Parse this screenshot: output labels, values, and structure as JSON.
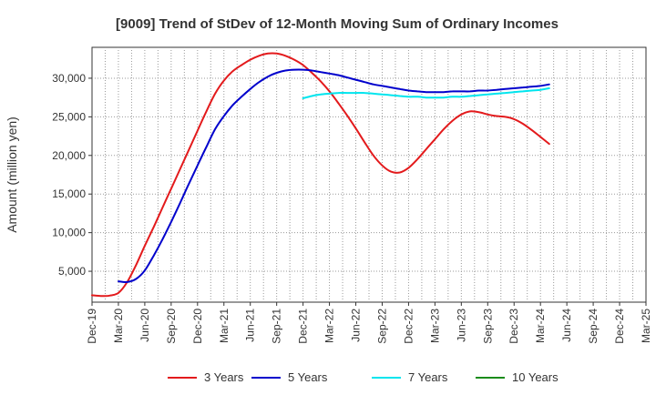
{
  "chart_data": {
    "type": "line",
    "title": "[9009]  Trend of StDev of 12-Month Moving Sum of Ordinary Incomes",
    "xlabel": "",
    "ylabel": "Amount (million yen)",
    "ylim": [
      1000,
      34000
    ],
    "yticks": [
      5000,
      10000,
      15000,
      20000,
      25000,
      30000
    ],
    "ytick_labels": [
      "5,000",
      "10,000",
      "15,000",
      "20,000",
      "25,000",
      "30,000"
    ],
    "x_tick_labels": [
      "Dec-19",
      "Mar-20",
      "Jun-20",
      "Sep-20",
      "Dec-20",
      "Mar-21",
      "Jun-21",
      "Sep-21",
      "Dec-21",
      "Mar-22",
      "Jun-22",
      "Sep-22",
      "Dec-22",
      "Mar-23",
      "Jun-23",
      "Sep-23",
      "Dec-23",
      "Mar-24",
      "Jun-24",
      "Sep-24",
      "Dec-24",
      "Mar-25"
    ],
    "grid": true,
    "legend_position": "bottom",
    "series": [
      {
        "name": "3 Years",
        "color": "#e31a1c",
        "values": [
          [
            0,
            1900
          ],
          [
            1,
            1800
          ],
          [
            2,
            1850
          ],
          [
            3,
            2200
          ],
          [
            4,
            3600
          ],
          [
            5,
            5800
          ],
          [
            6,
            8300
          ],
          [
            7,
            10700
          ],
          [
            8,
            13200
          ],
          [
            9,
            15700
          ],
          [
            10,
            18200
          ],
          [
            11,
            20700
          ],
          [
            12,
            23200
          ],
          [
            13,
            25700
          ],
          [
            14,
            28000
          ],
          [
            15,
            29700
          ],
          [
            16,
            30900
          ],
          [
            17,
            31700
          ],
          [
            18,
            32400
          ],
          [
            19,
            32900
          ],
          [
            20,
            33200
          ],
          [
            21,
            33200
          ],
          [
            22,
            32900
          ],
          [
            23,
            32400
          ],
          [
            24,
            31700
          ],
          [
            25,
            30700
          ],
          [
            26,
            29600
          ],
          [
            27,
            28300
          ],
          [
            28,
            26800
          ],
          [
            29,
            25200
          ],
          [
            30,
            23500
          ],
          [
            31,
            21700
          ],
          [
            32,
            20000
          ],
          [
            33,
            18700
          ],
          [
            34,
            17900
          ],
          [
            35,
            17800
          ],
          [
            36,
            18400
          ],
          [
            37,
            19500
          ],
          [
            38,
            20800
          ],
          [
            39,
            22100
          ],
          [
            40,
            23400
          ],
          [
            41,
            24500
          ],
          [
            42,
            25300
          ],
          [
            43,
            25700
          ],
          [
            44,
            25600
          ],
          [
            45,
            25300
          ],
          [
            46,
            25100
          ],
          [
            47,
            25000
          ],
          [
            48,
            24700
          ],
          [
            49,
            24100
          ],
          [
            50,
            23300
          ],
          [
            51,
            22400
          ],
          [
            52,
            21500
          ]
        ]
      },
      {
        "name": "5 Years",
        "color": "#0000cc",
        "values": [
          [
            3,
            3700
          ],
          [
            4,
            3600
          ],
          [
            5,
            4000
          ],
          [
            6,
            5100
          ],
          [
            7,
            7000
          ],
          [
            8,
            9100
          ],
          [
            9,
            11400
          ],
          [
            10,
            13800
          ],
          [
            11,
            16300
          ],
          [
            12,
            18700
          ],
          [
            13,
            21100
          ],
          [
            14,
            23400
          ],
          [
            15,
            25100
          ],
          [
            16,
            26500
          ],
          [
            17,
            27600
          ],
          [
            18,
            28600
          ],
          [
            19,
            29500
          ],
          [
            20,
            30200
          ],
          [
            21,
            30700
          ],
          [
            22,
            31000
          ],
          [
            23,
            31100
          ],
          [
            24,
            31100
          ],
          [
            25,
            31000
          ],
          [
            26,
            30800
          ],
          [
            27,
            30600
          ],
          [
            28,
            30400
          ],
          [
            29,
            30100
          ],
          [
            30,
            29800
          ],
          [
            31,
            29500
          ],
          [
            32,
            29200
          ],
          [
            33,
            29000
          ],
          [
            34,
            28800
          ],
          [
            35,
            28600
          ],
          [
            36,
            28400
          ],
          [
            37,
            28300
          ],
          [
            38,
            28200
          ],
          [
            39,
            28200
          ],
          [
            40,
            28200
          ],
          [
            41,
            28300
          ],
          [
            42,
            28300
          ],
          [
            43,
            28300
          ],
          [
            44,
            28400
          ],
          [
            45,
            28400
          ],
          [
            46,
            28500
          ],
          [
            47,
            28600
          ],
          [
            48,
            28700
          ],
          [
            49,
            28800
          ],
          [
            50,
            28900
          ],
          [
            51,
            29000
          ],
          [
            52,
            29200
          ]
        ]
      },
      {
        "name": "7 Years",
        "color": "#00e5ee",
        "values": [
          [
            24,
            27400
          ],
          [
            25,
            27700
          ],
          [
            26,
            27900
          ],
          [
            27,
            28000
          ],
          [
            28,
            28100
          ],
          [
            29,
            28100
          ],
          [
            30,
            28100
          ],
          [
            31,
            28100
          ],
          [
            32,
            28000
          ],
          [
            33,
            27900
          ],
          [
            34,
            27800
          ],
          [
            35,
            27700
          ],
          [
            36,
            27600
          ],
          [
            37,
            27600
          ],
          [
            38,
            27500
          ],
          [
            39,
            27500
          ],
          [
            40,
            27500
          ],
          [
            41,
            27600
          ],
          [
            42,
            27600
          ],
          [
            43,
            27700
          ],
          [
            44,
            27800
          ],
          [
            45,
            27900
          ],
          [
            46,
            28000
          ],
          [
            47,
            28100
          ],
          [
            48,
            28200
          ],
          [
            49,
            28300
          ],
          [
            50,
            28400
          ],
          [
            51,
            28500
          ],
          [
            52,
            28700
          ]
        ]
      },
      {
        "name": "10 Years",
        "color": "#1a8c1a",
        "values": []
      }
    ]
  }
}
